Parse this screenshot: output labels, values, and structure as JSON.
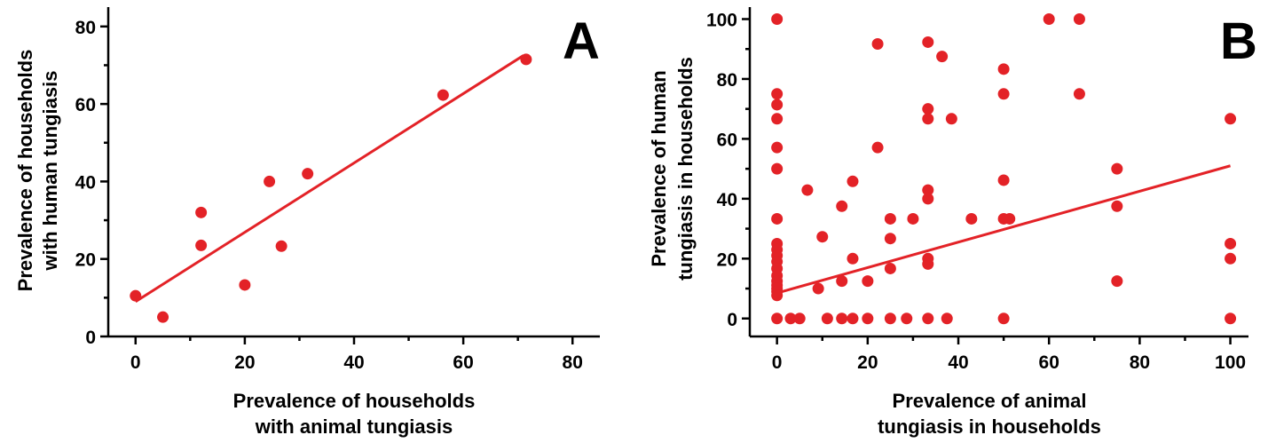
{
  "figure": {
    "background": "#ffffff",
    "point_color": "#e32227",
    "line_color": "#e32227"
  },
  "chart_data": [
    {
      "type": "scatter",
      "panel_label": "A",
      "xlabel": [
        "Prevalence of households",
        "with animal tungiasis"
      ],
      "ylabel": [
        "Prevalence of households",
        "with human tungiasis"
      ],
      "xlim": [
        -5,
        85
      ],
      "ylim": [
        0,
        85
      ],
      "xticks": [
        0,
        20,
        40,
        60,
        80
      ],
      "yticks": [
        0,
        20,
        40,
        60,
        80
      ],
      "grid": false,
      "points": [
        [
          0,
          10.5
        ],
        [
          5,
          5
        ],
        [
          12,
          32
        ],
        [
          12,
          23.5
        ],
        [
          20,
          13.3
        ],
        [
          24.5,
          40
        ],
        [
          26.7,
          23.3
        ],
        [
          31.5,
          42
        ],
        [
          56.3,
          62.3
        ],
        [
          71.5,
          71.5
        ]
      ],
      "fit_line": [
        [
          0,
          9
        ],
        [
          71,
          72.5
        ]
      ]
    },
    {
      "type": "scatter",
      "panel_label": "B",
      "xlabel": [
        "Prevalence of animal",
        "tungiasis in households"
      ],
      "ylabel": [
        "Prevalence of human",
        "tungiasis in households"
      ],
      "xlim": [
        -6,
        104
      ],
      "ylim": [
        -6,
        104
      ],
      "xticks": [
        0,
        20,
        40,
        60,
        80,
        100
      ],
      "yticks": [
        0,
        20,
        40,
        60,
        80,
        100
      ],
      "grid": false,
      "points": [
        [
          0,
          100
        ],
        [
          0,
          75
        ],
        [
          0,
          71.4
        ],
        [
          0,
          66.7
        ],
        [
          0,
          57.1
        ],
        [
          0,
          50
        ],
        [
          0,
          33.3
        ],
        [
          0,
          25
        ],
        [
          0,
          23
        ],
        [
          0,
          21
        ],
        [
          0,
          19
        ],
        [
          0,
          16.7
        ],
        [
          0,
          14.3
        ],
        [
          0,
          12.5
        ],
        [
          0,
          11.1
        ],
        [
          0,
          10
        ],
        [
          0,
          9
        ],
        [
          0,
          7.7
        ],
        [
          0,
          0
        ],
        [
          3,
          0
        ],
        [
          5,
          0
        ],
        [
          6.7,
          42.9
        ],
        [
          9.1,
          10
        ],
        [
          10,
          27.3
        ],
        [
          11.1,
          0
        ],
        [
          14.3,
          37.5
        ],
        [
          14.3,
          12.5
        ],
        [
          14.3,
          0
        ],
        [
          16.7,
          45.8
        ],
        [
          16.7,
          20
        ],
        [
          16.7,
          0
        ],
        [
          20,
          12.5
        ],
        [
          20,
          0
        ],
        [
          22.2,
          91.7
        ],
        [
          22.2,
          57.1
        ],
        [
          25,
          33.3
        ],
        [
          25,
          26.7
        ],
        [
          25,
          16.7
        ],
        [
          25,
          0
        ],
        [
          28.6,
          0
        ],
        [
          30,
          33.3
        ],
        [
          33.3,
          92.3
        ],
        [
          33.3,
          70
        ],
        [
          33.3,
          66.7
        ],
        [
          33.3,
          42.9
        ],
        [
          33.3,
          40
        ],
        [
          33.3,
          20
        ],
        [
          33.3,
          18.2
        ],
        [
          33.3,
          0
        ],
        [
          36.4,
          87.5
        ],
        [
          37.5,
          0
        ],
        [
          38.5,
          66.7
        ],
        [
          42.9,
          33.3
        ],
        [
          50,
          83.3
        ],
        [
          50,
          75
        ],
        [
          50,
          46.2
        ],
        [
          50,
          33.3
        ],
        [
          50,
          0
        ],
        [
          51.3,
          33.3
        ],
        [
          60,
          100
        ],
        [
          66.7,
          100
        ],
        [
          66.7,
          75
        ],
        [
          75,
          50
        ],
        [
          75,
          37.5
        ],
        [
          75,
          12.5
        ],
        [
          100,
          66.7
        ],
        [
          100,
          25
        ],
        [
          100,
          20
        ],
        [
          100,
          0
        ]
      ],
      "fit_line": [
        [
          0,
          8.5
        ],
        [
          100,
          51
        ]
      ]
    }
  ]
}
